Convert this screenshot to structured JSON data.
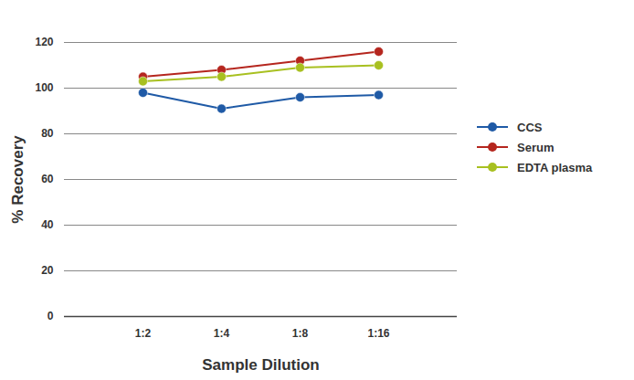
{
  "chart_data": {
    "type": "line",
    "x_label": "Sample Dilution",
    "y_label": "% Recovery",
    "categories": [
      "1:2",
      "1:4",
      "1:8",
      "1:16"
    ],
    "series": [
      {
        "name": "CCS",
        "color": "#1f5aa6",
        "values": [
          98,
          91,
          96,
          97
        ]
      },
      {
        "name": "Serum",
        "color": "#b5261e",
        "values": [
          105,
          108,
          112,
          116
        ]
      },
      {
        "name": "EDTA plasma",
        "color": "#a8c020",
        "values": [
          103,
          105,
          109,
          110
        ]
      }
    ],
    "ylim": [
      0,
      120
    ],
    "yticks": [
      0,
      20,
      40,
      60,
      80,
      100,
      120
    ],
    "grid": true,
    "legend": "right",
    "marker": "circle"
  }
}
